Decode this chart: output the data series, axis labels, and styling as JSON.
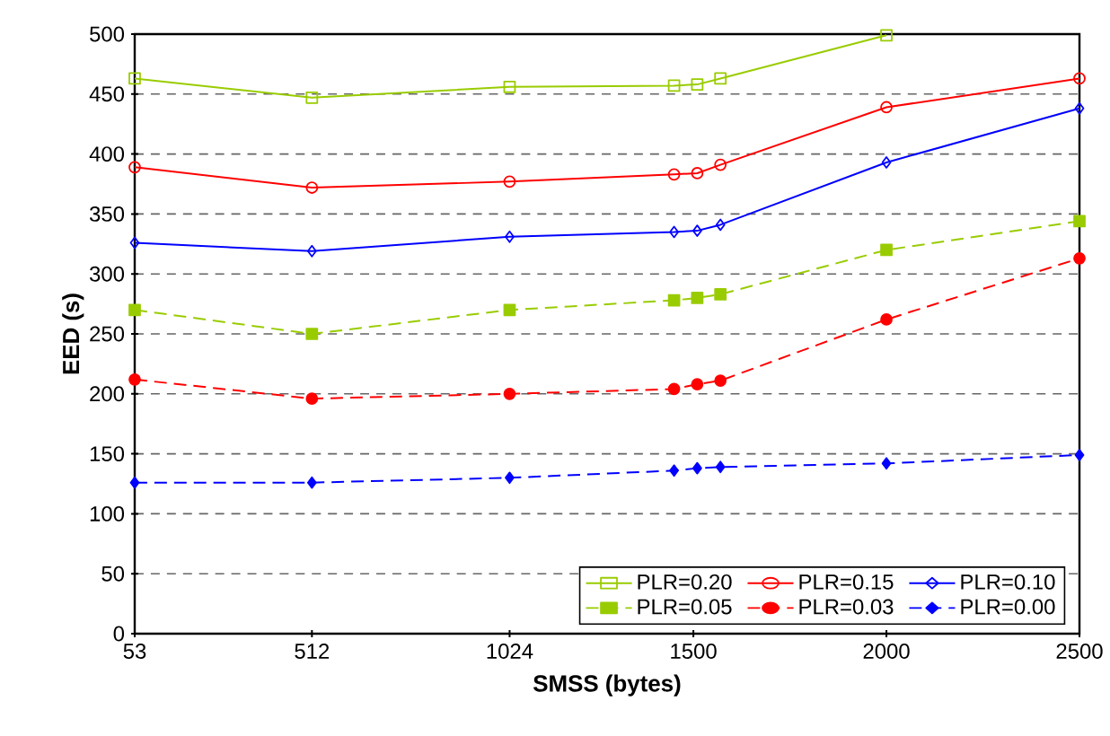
{
  "chart_data": {
    "type": "line",
    "xlabel": "SMSS (bytes)",
    "ylabel": "EED (s)",
    "x": [
      53,
      512,
      1024,
      1450,
      1510,
      1570,
      2000,
      2500
    ],
    "xlim": [
      53,
      2500
    ],
    "xticks": [
      53,
      512,
      1024,
      1500,
      2000,
      2500
    ],
    "ylim": [
      0,
      500
    ],
    "yticks": [
      0,
      50,
      100,
      150,
      200,
      250,
      300,
      350,
      400,
      450,
      500
    ],
    "grid": "y",
    "legend": "bottom right",
    "series": [
      {
        "name": "PLR=0.20",
        "color": "#99cc00",
        "marker": "square",
        "line_style": "solid",
        "values": [
          463,
          447,
          456,
          457,
          458,
          463,
          499,
          null
        ]
      },
      {
        "name": "PLR=0.15",
        "color": "#ff0000",
        "marker": "circle",
        "line_style": "solid",
        "values": [
          389,
          372,
          377,
          383,
          384,
          391,
          439,
          463
        ]
      },
      {
        "name": "PLR=0.10",
        "color": "#0000ff",
        "marker": "diamond",
        "line_style": "solid",
        "values": [
          326,
          319,
          331,
          335,
          336,
          341,
          393,
          438
        ]
      },
      {
        "name": "PLR=0.05",
        "color": "#99cc00",
        "marker": "square",
        "line_style": "dashed",
        "values": [
          270,
          250,
          270,
          278,
          280,
          283,
          320,
          344
        ]
      },
      {
        "name": "PLR=0.03",
        "color": "#ff0000",
        "marker": "circle",
        "line_style": "dashed",
        "values": [
          212,
          196,
          200,
          204,
          208,
          211,
          262,
          313
        ]
      },
      {
        "name": "PLR=0.00",
        "color": "#0000ff",
        "marker": "diamond",
        "line_style": "dashed",
        "values": [
          126,
          126,
          130,
          136,
          138,
          139,
          142,
          149
        ]
      }
    ]
  }
}
